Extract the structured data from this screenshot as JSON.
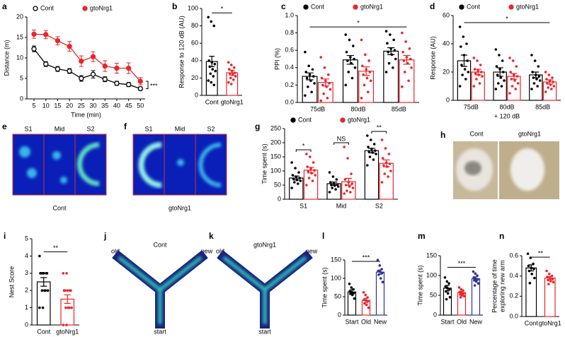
{
  "chart_data": [
    {
      "panel": "a",
      "type": "line",
      "xlabel": "Time (min)",
      "ylabel": "Distance (m)",
      "x": [
        5,
        10,
        15,
        20,
        25,
        30,
        35,
        40,
        45,
        50
      ],
      "xlim": [
        2,
        52
      ],
      "xticks": [
        5,
        10,
        15,
        20,
        25,
        30,
        35,
        40,
        45,
        50
      ],
      "ylim": [
        0,
        20
      ],
      "yticks": [
        0,
        5,
        10,
        15,
        20
      ],
      "series": [
        {
          "name": "Cont",
          "color": "#000000",
          "marker": "open",
          "values": [
            12.2,
            8.5,
            7.3,
            6.8,
            5.0,
            6.0,
            4.8,
            3.8,
            3.5,
            2.5
          ],
          "errors": [
            0.7,
            0.6,
            0.6,
            0.6,
            0.7,
            0.9,
            0.6,
            0.5,
            0.5,
            0.4
          ]
        },
        {
          "name": "gtoNrg1",
          "color": "#e8262b",
          "marker": "filled",
          "values": [
            15.8,
            15.7,
            14.2,
            12.8,
            9.2,
            10.3,
            8.0,
            7.5,
            7.5,
            4.3
          ],
          "errors": [
            1.0,
            1.0,
            1.0,
            1.2,
            1.3,
            1.2,
            1.3,
            1.2,
            1.3,
            0.9
          ]
        }
      ],
      "annotations": [
        {
          "text": "***"
        }
      ]
    },
    {
      "panel": "b",
      "type": "dotbar",
      "ylabel": "Response to 120 dB (AU)",
      "categories": [
        "Cont",
        "gtoNrg1"
      ],
      "ylim": [
        0,
        100
      ],
      "yticks": [
        0,
        20,
        40,
        60,
        80,
        100
      ],
      "colors": [
        "#000000",
        "#e8262b"
      ],
      "values": [
        39,
        26
      ],
      "errors": [
        6,
        3
      ],
      "points": [
        [
          90,
          85,
          80,
          40,
          38,
          36,
          33,
          30,
          28,
          25,
          22,
          17,
          15,
          12
        ],
        [
          38,
          35,
          32,
          30,
          28,
          26,
          25,
          24,
          22,
          20,
          18,
          15,
          13
        ]
      ],
      "annotations": [
        {
          "text": "*",
          "categories": [
            0,
            1
          ]
        }
      ]
    },
    {
      "panel": "c",
      "type": "dotbar",
      "ylabel": "PPI (%)",
      "categories": [
        "75dB",
        "80dB",
        "85dB"
      ],
      "ylim": [
        0,
        1
      ],
      "yticks": [
        {
          "value": 0,
          "label": "0.0"
        },
        {
          "value": 0.2,
          "label": "0.2"
        },
        {
          "value": 0.4,
          "label": "0.4"
        },
        {
          "value": 0.6,
          "label": "0.6"
        },
        {
          "value": 0.8,
          "label": "0.8"
        },
        {
          "value": 1,
          "label": "1.0"
        }
      ],
      "series": [
        {
          "name": "Cont",
          "color": "#000000",
          "values": [
            0.3,
            0.49,
            0.59
          ],
          "errors": [
            0.04,
            0.05,
            0.04
          ],
          "points": [
            [
              0.58,
              0.42,
              0.38,
              0.35,
              0.32,
              0.3,
              0.28,
              0.25,
              0.22,
              0.18,
              0.12,
              0.08
            ],
            [
              0.78,
              0.72,
              0.65,
              0.58,
              0.52,
              0.5,
              0.48,
              0.45,
              0.4,
              0.35,
              0.28,
              0.2
            ],
            [
              0.82,
              0.78,
              0.72,
              0.68,
              0.62,
              0.6,
              0.58,
              0.55,
              0.5,
              0.45,
              0.4,
              0.35
            ]
          ]
        },
        {
          "name": "gtoNrg1",
          "color": "#e8262b",
          "values": [
            0.23,
            0.36,
            0.49
          ],
          "errors": [
            0.04,
            0.05,
            0.05
          ],
          "points": [
            [
              0.52,
              0.4,
              0.32,
              0.28,
              0.25,
              0.22,
              0.2,
              0.18,
              0.15,
              0.1,
              0.05,
              0.02
            ],
            [
              0.72,
              0.55,
              0.48,
              0.42,
              0.38,
              0.35,
              0.32,
              0.28,
              0.25,
              0.2,
              0.12,
              0.05
            ],
            [
              0.8,
              0.7,
              0.62,
              0.58,
              0.52,
              0.5,
              0.48,
              0.45,
              0.4,
              0.35,
              0.25,
              0.18
            ]
          ]
        }
      ],
      "annotations": [
        {
          "text": "*",
          "categories": [
            0,
            2
          ]
        }
      ]
    },
    {
      "panel": "d",
      "type": "dotbar",
      "ylabel": "Response (AU)",
      "xlabel": "+ 120 dB",
      "categories": [
        "75dB",
        "80dB",
        "85dB"
      ],
      "ylim": [
        0,
        60
      ],
      "yticks": [
        0,
        20,
        40,
        60
      ],
      "series": [
        {
          "name": "Cont",
          "color": "#000000",
          "values": [
            28,
            20,
            18
          ],
          "errors": [
            4,
            3,
            2
          ],
          "points": [
            [
              52,
              45,
              40,
              38,
              32,
              28,
              25,
              22,
              20,
              18,
              15,
              10
            ],
            [
              36,
              32,
              28,
              24,
              22,
              20,
              18,
              16,
              14,
              12,
              10,
              8
            ],
            [
              32,
              28,
              24,
              20,
              18,
              17,
              16,
              15,
              14,
              12,
              10,
              8
            ]
          ]
        },
        {
          "name": "gtoNrg1",
          "color": "#e8262b",
          "values": [
            20,
            17,
            13
          ],
          "errors": [
            2,
            2,
            1.5
          ],
          "points": [
            [
              30,
              28,
              25,
              22,
              21,
              20,
              19,
              18,
              17,
              15,
              12,
              10
            ],
            [
              30,
              28,
              24,
              20,
              18,
              17,
              15,
              14,
              12,
              10,
              8,
              5
            ],
            [
              20,
              18,
              16,
              15,
              14,
              13,
              12,
              11,
              10,
              9,
              8,
              6
            ]
          ]
        }
      ],
      "annotations": [
        {
          "text": "*",
          "categories": [
            0,
            2
          ]
        }
      ]
    },
    {
      "panel": "g",
      "type": "dotbar",
      "ylabel": "Time spent (s)",
      "categories": [
        "S1",
        "Mid",
        "S2"
      ],
      "ylim": [
        0,
        250
      ],
      "yticks": [
        0,
        50,
        100,
        150,
        200,
        250
      ],
      "series": [
        {
          "name": "Cont",
          "color": "#000000",
          "values": [
            75,
            55,
            172
          ],
          "errors": [
            7,
            6,
            8
          ],
          "points": [
            [
              130,
              110,
              95,
              85,
              80,
              75,
              72,
              68,
              65,
              60,
              55,
              40
            ],
            [
              95,
              80,
              70,
              60,
              55,
              52,
              50,
              48,
              45,
              40,
              35,
              25
            ],
            [
              225,
              210,
              195,
              185,
              178,
              172,
              168,
              165,
              160,
              150,
              140,
              120
            ]
          ]
        },
        {
          "name": "gtoNrg1",
          "color": "#e8262b",
          "values": [
            103,
            62,
            127
          ],
          "errors": [
            10,
            12,
            12
          ],
          "points": [
            [
              160,
              150,
              130,
              115,
              108,
              102,
              98,
              92,
              85,
              75,
              65,
              50
            ],
            [
              185,
              145,
              90,
              70,
              60,
              55,
              50,
              45,
              40,
              30,
              25,
              20
            ],
            [
              210,
              180,
              160,
              145,
              130,
              125,
              120,
              115,
              100,
              90,
              80,
              60
            ]
          ]
        }
      ],
      "annotations": [
        {
          "text": "*",
          "categories": [
            0,
            0
          ]
        },
        {
          "text": "NS",
          "categories": [
            1,
            1
          ]
        },
        {
          "text": "**",
          "categories": [
            2,
            2
          ]
        }
      ]
    },
    {
      "panel": "i",
      "type": "dotbar",
      "ylabel": "Nest Score",
      "categories": [
        "Cont",
        "gtoNrg1"
      ],
      "ylim": [
        0,
        5
      ],
      "yticks": [
        0,
        1,
        2,
        3,
        4,
        5
      ],
      "colors": [
        "#000000",
        "#e8262b"
      ],
      "values": [
        2.5,
        1.5
      ],
      "errors": [
        0.25,
        0.25
      ],
      "points": [
        [
          4,
          3,
          3,
          3,
          3,
          3,
          3,
          2,
          2,
          2,
          2,
          1,
          1
        ],
        [
          3,
          3,
          2,
          2,
          2,
          2,
          2,
          1,
          1,
          1,
          1,
          0,
          0
        ]
      ],
      "annotations": [
        {
          "text": "**",
          "categories": [
            0,
            1
          ]
        }
      ]
    },
    {
      "panel": "l",
      "type": "dotbar",
      "ylabel": "Time spent (s)",
      "categories": [
        "Start",
        "Old",
        "New"
      ],
      "ylim": [
        0,
        150
      ],
      "yticks": [
        0,
        50,
        100,
        150
      ],
      "colors": [
        "#000000",
        "#e8262b",
        "#2e3192"
      ],
      "values": [
        63,
        40,
        117
      ],
      "errors": [
        6,
        6,
        6
      ],
      "points": [
        [
          85,
          75,
          70,
          65,
          62,
          60,
          58,
          55,
          45
        ],
        [
          62,
          55,
          48,
          42,
          40,
          38,
          32,
          28,
          20
        ],
        [
          150,
          135,
          125,
          120,
          118,
          115,
          110,
          100,
          90
        ]
      ],
      "annotations": [
        {
          "text": "***",
          "categories": [
            0,
            2
          ]
        }
      ]
    },
    {
      "panel": "m",
      "type": "dotbar",
      "ylabel": "Time spent (s)",
      "categories": [
        "Start",
        "Old",
        "New"
      ],
      "ylim": [
        0,
        150
      ],
      "yticks": [
        0,
        50,
        100,
        150
      ],
      "colors": [
        "#000000",
        "#e8262b",
        "#2e3192"
      ],
      "values": [
        68,
        57,
        92
      ],
      "errors": [
        7,
        3,
        5
      ],
      "points": [
        [
          95,
          85,
          80,
          72,
          68,
          65,
          60,
          55,
          45,
          40
        ],
        [
          70,
          65,
          62,
          58,
          56,
          55,
          52,
          50,
          48,
          45
        ],
        [
          110,
          105,
          100,
          95,
          92,
          90,
          88,
          85,
          80,
          75
        ]
      ],
      "annotations": [
        {
          "text": "***",
          "categories": [
            0,
            2
          ]
        }
      ]
    },
    {
      "panel": "n",
      "type": "dotbar",
      "ylabel": [
        "Percentage of time",
        "exploring new arm"
      ],
      "categories": [
        "Cont",
        "gtoNrg1"
      ],
      "ylim": [
        0,
        0.6
      ],
      "yticks": [
        {
          "value": 0,
          "label": "0.0"
        },
        {
          "value": 0.2,
          "label": "0.2"
        },
        {
          "value": 0.4,
          "label": "0.4"
        },
        {
          "value": 0.6,
          "label": "0.6"
        }
      ],
      "colors": [
        "#000000",
        "#e8262b"
      ],
      "values": [
        0.48,
        0.38
      ],
      "errors": [
        0.03,
        0.015
      ],
      "points": [
        [
          0.62,
          0.58,
          0.52,
          0.5,
          0.48,
          0.47,
          0.45,
          0.42,
          0.38,
          0.33
        ],
        [
          0.45,
          0.42,
          0.4,
          0.39,
          0.38,
          0.37,
          0.36,
          0.35,
          0.34,
          0.32
        ]
      ],
      "annotations": [
        {
          "text": "**",
          "categories": [
            0,
            1
          ]
        }
      ]
    }
  ],
  "figures": [
    {
      "panel": "e",
      "labels": [
        "S1",
        "Mid",
        "S2"
      ],
      "caption": "Cont"
    },
    {
      "panel": "f",
      "labels": [
        "S1",
        "Mid",
        "S2"
      ],
      "caption": "gtoNrg1"
    },
    {
      "panel": "h",
      "labels": [
        "Cont",
        "gtoNrg1"
      ]
    },
    {
      "panel": "j",
      "title": "Cont",
      "arms": [
        "old",
        "new",
        "start"
      ]
    },
    {
      "panel": "k",
      "title": "gtoNrg1",
      "arms": [
        "old",
        "new",
        "start"
      ]
    }
  ]
}
